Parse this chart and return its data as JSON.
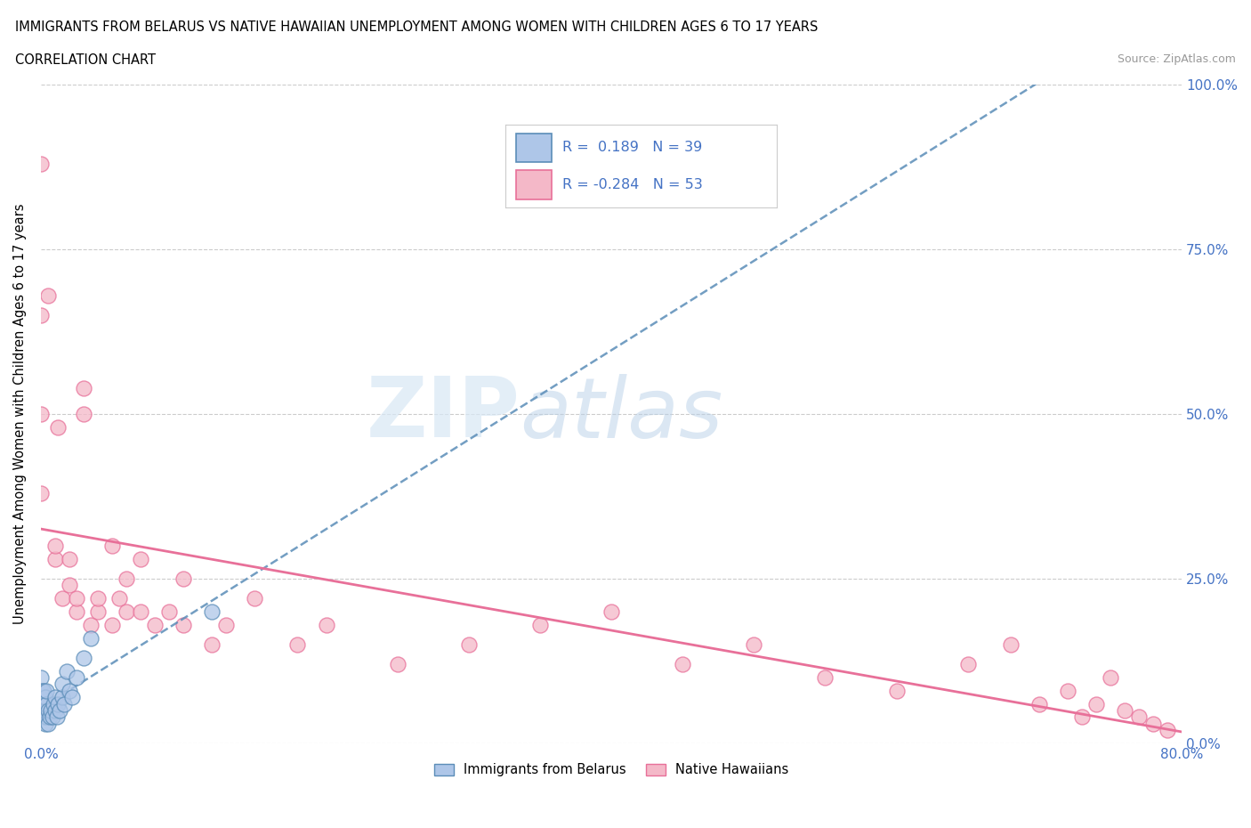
{
  "title_line1": "IMMIGRANTS FROM BELARUS VS NATIVE HAWAIIAN UNEMPLOYMENT AMONG WOMEN WITH CHILDREN AGES 6 TO 17 YEARS",
  "title_line2": "CORRELATION CHART",
  "source": "Source: ZipAtlas.com",
  "ylabel": "Unemployment Among Women with Children Ages 6 to 17 years",
  "xmin": 0.0,
  "xmax": 0.8,
  "ymin": 0.0,
  "ymax": 1.0,
  "xticks": [
    0.0,
    0.1,
    0.2,
    0.3,
    0.4,
    0.5,
    0.6,
    0.7,
    0.8
  ],
  "xtick_labels": [
    "0.0%",
    "",
    "",
    "",
    "",
    "",
    "",
    "",
    "80.0%"
  ],
  "yticks": [
    0.0,
    0.25,
    0.5,
    0.75,
    1.0
  ],
  "ytick_labels": [
    "0.0%",
    "25.0%",
    "50.0%",
    "75.0%",
    "100.0%"
  ],
  "legend_text1": "R =  0.189   N = 39",
  "legend_text2": "R = -0.284   N = 53",
  "color_belarus": "#AEC6E8",
  "color_hawaii": "#F4B8C8",
  "color_belarus_edge": "#5B8DB8",
  "color_hawaii_edge": "#E87099",
  "color_trendline_belarus": "#5B8DB8",
  "color_trendline_hawaii": "#E87099",
  "color_legend_text": "#4472C4",
  "watermark_zip": "ZIP",
  "watermark_atlas": "atlas",
  "belarus_x": [
    0.0,
    0.0,
    0.0,
    0.0,
    0.0,
    0.0,
    0.001,
    0.001,
    0.001,
    0.002,
    0.002,
    0.002,
    0.003,
    0.003,
    0.003,
    0.004,
    0.004,
    0.004,
    0.005,
    0.005,
    0.006,
    0.007,
    0.008,
    0.009,
    0.01,
    0.01,
    0.011,
    0.012,
    0.013,
    0.015,
    0.015,
    0.016,
    0.018,
    0.02,
    0.022,
    0.025,
    0.03,
    0.035,
    0.12
  ],
  "belarus_y": [
    0.04,
    0.05,
    0.06,
    0.07,
    0.08,
    0.1,
    0.04,
    0.06,
    0.08,
    0.04,
    0.06,
    0.08,
    0.03,
    0.05,
    0.07,
    0.04,
    0.06,
    0.08,
    0.03,
    0.05,
    0.04,
    0.05,
    0.04,
    0.06,
    0.05,
    0.07,
    0.04,
    0.06,
    0.05,
    0.07,
    0.09,
    0.06,
    0.11,
    0.08,
    0.07,
    0.1,
    0.13,
    0.16,
    0.2
  ],
  "hawaii_x": [
    0.0,
    0.0,
    0.0,
    0.0,
    0.005,
    0.01,
    0.01,
    0.012,
    0.015,
    0.02,
    0.02,
    0.025,
    0.025,
    0.03,
    0.03,
    0.035,
    0.04,
    0.04,
    0.05,
    0.05,
    0.055,
    0.06,
    0.06,
    0.07,
    0.07,
    0.08,
    0.09,
    0.1,
    0.1,
    0.12,
    0.13,
    0.15,
    0.18,
    0.2,
    0.25,
    0.3,
    0.35,
    0.4,
    0.45,
    0.5,
    0.55,
    0.6,
    0.65,
    0.68,
    0.7,
    0.72,
    0.73,
    0.74,
    0.75,
    0.76,
    0.77,
    0.78,
    0.79
  ],
  "hawaii_y": [
    0.88,
    0.65,
    0.5,
    0.38,
    0.68,
    0.28,
    0.3,
    0.48,
    0.22,
    0.24,
    0.28,
    0.2,
    0.22,
    0.5,
    0.54,
    0.18,
    0.2,
    0.22,
    0.18,
    0.3,
    0.22,
    0.2,
    0.25,
    0.2,
    0.28,
    0.18,
    0.2,
    0.18,
    0.25,
    0.15,
    0.18,
    0.22,
    0.15,
    0.18,
    0.12,
    0.15,
    0.18,
    0.2,
    0.12,
    0.15,
    0.1,
    0.08,
    0.12,
    0.15,
    0.06,
    0.08,
    0.04,
    0.06,
    0.1,
    0.05,
    0.04,
    0.03,
    0.02
  ],
  "trendline_belarus_x0": 0.0,
  "trendline_belarus_x1": 0.8,
  "trendline_hawaii_x0": 0.0,
  "trendline_hawaii_x1": 0.8
}
